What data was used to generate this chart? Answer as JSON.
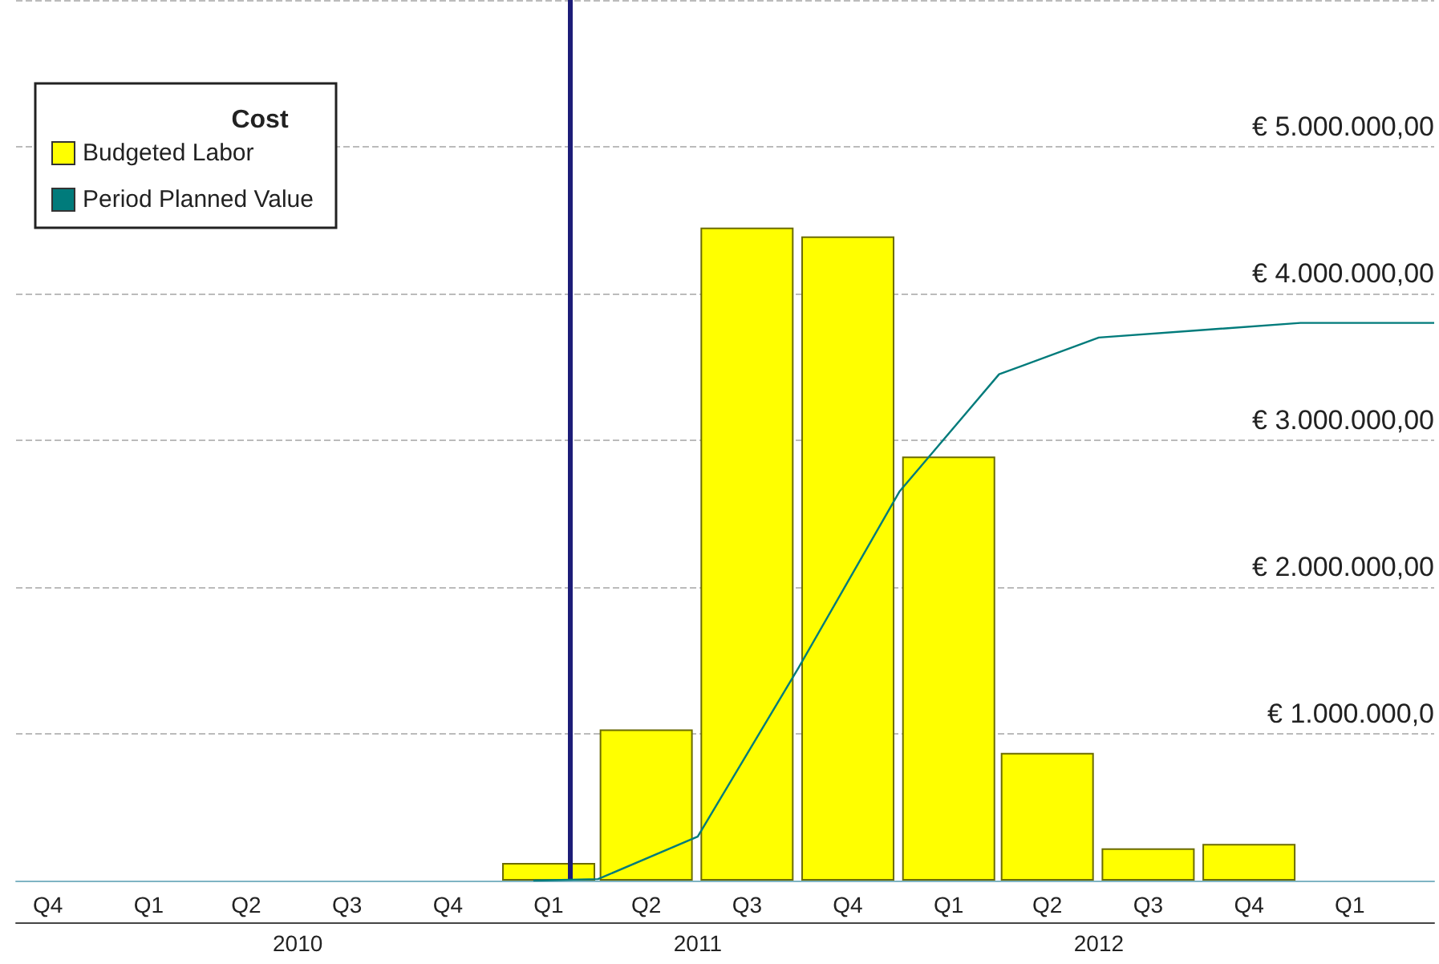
{
  "chart_data": {
    "type": "bar",
    "legend_title": "Cost",
    "xlim": [
      "2009-10-17",
      "2013-05-03"
    ],
    "xticks": [
      {
        "value": "2009-11-15",
        "label": "Q4"
      },
      {
        "value": "2010-02-15",
        "label": "Q1"
      },
      {
        "value": "2010-05-15",
        "label": "Q2"
      },
      {
        "value": "2010-08-15",
        "label": "Q3"
      },
      {
        "value": "2010-11-15",
        "label": "Q4"
      },
      {
        "value": "2011-02-15",
        "label": "Q1"
      },
      {
        "value": "2011-05-15",
        "label": "Q2"
      },
      {
        "value": "2011-08-15",
        "label": "Q3"
      },
      {
        "value": "2011-11-15",
        "label": "Q4"
      },
      {
        "value": "2012-02-15",
        "label": "Q1"
      },
      {
        "value": "2012-05-15",
        "label": "Q2"
      },
      {
        "value": "2012-08-15",
        "label": "Q3"
      },
      {
        "value": "2012-11-15",
        "label": "Q4"
      },
      {
        "value": "2013-02-15",
        "label": "Q1"
      }
    ],
    "x2lim": [
      "2009-10-17",
      "2013-05-03"
    ],
    "x2ticks": [
      {
        "value": "2010-07-01",
        "label": "2010"
      },
      {
        "value": "2011-07-01",
        "label": "2011"
      },
      {
        "value": "2012-07-01",
        "label": "2012"
      }
    ],
    "ylim": [
      0,
      6000000
    ],
    "yticks": [
      {
        "value": 1000000,
        "label": "€ 1.000.000,0"
      },
      {
        "value": 2000000,
        "label": "€ 2.000.000,00"
      },
      {
        "value": 3000000,
        "label": "€ 3.000.000,00"
      },
      {
        "value": 4000000,
        "label": "€ 4.000.000,00"
      },
      {
        "value": 5000000,
        "label": "€ 5.000.000,00"
      }
    ],
    "series": [
      {
        "name": "Budgeted Labor",
        "color": "#ffff00",
        "x": [
          "2011-02-15",
          "2011-05-15",
          "2011-08-15",
          "2011-11-15",
          "2012-02-15",
          "2012-05-15",
          "2012-08-15",
          "2012-11-15"
        ],
        "values": [
          120000,
          1030000,
          4450000,
          4390000,
          2890000,
          870000,
          220000,
          250000
        ]
      },
      {
        "name": "Period Planned Value",
        "type": "line",
        "color": "#007b7b",
        "x": [
          "2011-02-01",
          "2011-04-01",
          "2011-07-01",
          "2011-10-01",
          "2012-01-01",
          "2012-04-01",
          "2012-07-01",
          "2012-10-01",
          "2013-01-01",
          "2013-05-03"
        ],
        "values": [
          0,
          10000,
          300000,
          1450000,
          2650000,
          3450000,
          3700000,
          3750000,
          3800000,
          3800000
        ]
      }
    ],
    "ref_lines": [
      {
        "axis": "x",
        "value": "2011-03-07",
        "color": "#1c1c78"
      }
    ],
    "grid": "y",
    "legend": "top left",
    "marker": "none",
    "line_style": "solid"
  }
}
